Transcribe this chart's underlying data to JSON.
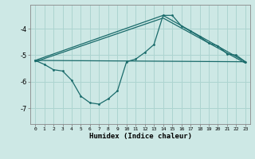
{
  "xlabel": "Humidex (Indice chaleur)",
  "ylabel": "",
  "background_color": "#cde8e5",
  "grid_color": "#add4d0",
  "line_color": "#1a6b6b",
  "xlim": [
    -0.5,
    23.5
  ],
  "ylim": [
    -7.6,
    -3.1
  ],
  "yticks": [
    -7,
    -6,
    -5,
    -4
  ],
  "xticks": [
    0,
    1,
    2,
    3,
    4,
    5,
    6,
    7,
    8,
    9,
    10,
    11,
    12,
    13,
    14,
    15,
    16,
    17,
    18,
    19,
    20,
    21,
    22,
    23
  ],
  "line1_x": [
    0,
    1,
    2,
    3,
    4,
    5,
    6,
    7,
    8,
    9,
    10,
    11,
    12,
    13,
    14,
    15,
    16,
    17,
    18,
    19,
    20,
    21,
    22,
    23
  ],
  "line1_y": [
    -5.2,
    -5.35,
    -5.55,
    -5.6,
    -5.95,
    -6.55,
    -6.8,
    -6.85,
    -6.65,
    -6.35,
    -5.25,
    -5.15,
    -4.9,
    -4.6,
    -3.5,
    -3.5,
    -3.9,
    -4.1,
    -4.3,
    -4.55,
    -4.65,
    -4.95,
    -5.0,
    -5.25
  ],
  "line2_x": [
    0,
    23
  ],
  "line2_y": [
    -5.2,
    -5.25
  ],
  "line3_x": [
    0,
    14,
    23
  ],
  "line3_y": [
    -5.2,
    -3.5,
    -5.25
  ],
  "line4_x": [
    0,
    14,
    23
  ],
  "line4_y": [
    -5.25,
    -3.6,
    -5.3
  ]
}
